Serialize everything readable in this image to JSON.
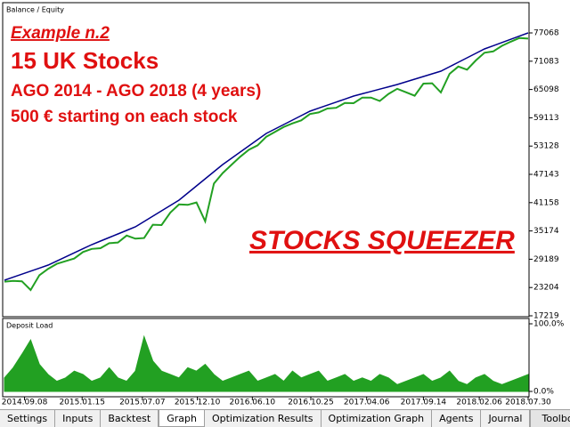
{
  "chart_data": [
    {
      "type": "line",
      "title": "Balance / Equity",
      "annotations": [
        "Example n.2",
        "15 UK Stocks",
        "AGO 2014 - AGO 2018 (4 years)",
        "500 € starting on each stock",
        "STOCKS SQUEEZER"
      ],
      "xlim": [
        0,
        60
      ],
      "ylim": [
        17219,
        83280
      ],
      "yticks": [
        77068,
        71083,
        65098,
        59113,
        53128,
        47143,
        41158,
        35174,
        29189,
        23204,
        17219
      ],
      "series": [
        {
          "color": "#22a022",
          "values": [
            24450,
            24590,
            24530,
            22670,
            25810,
            27150,
            28210,
            28780,
            29340,
            30710,
            31370,
            31520,
            32580,
            32730,
            34190,
            33540,
            33670,
            36490,
            36420,
            39050,
            40780,
            40690,
            41190,
            37200,
            45200,
            47410,
            49130,
            50850,
            52360,
            53280,
            55100,
            56140,
            57180,
            57920,
            58560,
            59900,
            60240,
            61080,
            61220,
            62260,
            62200,
            63390,
            63380,
            62670,
            64160,
            65250,
            64510,
            63780,
            66340,
            66410,
            64470,
            68410,
            69950,
            69300,
            71240,
            72880,
            73160,
            74340,
            75210,
            75990,
            75870
          ]
        },
        {
          "color": "#00008b",
          "values": [
            24750,
            25390,
            26030,
            26670,
            27310,
            27950,
            28810,
            29680,
            30540,
            31410,
            32270,
            33020,
            33780,
            34530,
            35290,
            36040,
            37170,
            38290,
            39420,
            40550,
            41680,
            43190,
            44690,
            46200,
            47700,
            49210,
            50530,
            51850,
            53160,
            54480,
            55800,
            56740,
            57680,
            58620,
            59560,
            60500,
            61140,
            61780,
            62420,
            63060,
            63700,
            64190,
            64680,
            65170,
            65660,
            66150,
            66710,
            67280,
            67840,
            68410,
            68970,
            69910,
            70850,
            71800,
            72740,
            73680,
            74360,
            75040,
            75710,
            76390,
            77070
          ]
        }
      ]
    },
    {
      "type": "area",
      "title": "Deposit Load",
      "color": "#22a022",
      "xlim": [
        0,
        60
      ],
      "ylim": [
        0,
        100
      ],
      "yticks": [
        {
          "value": 100,
          "label": "100.0%"
        },
        {
          "value": 0,
          "label": "0.0%"
        }
      ],
      "xticks": [
        {
          "value": 2.3,
          "label": "2014.09.08"
        },
        {
          "value": 8.9,
          "label": "2015.01.15"
        },
        {
          "value": 15.8,
          "label": "2015.07.07"
        },
        {
          "value": 22.1,
          "label": "2015.12.10"
        },
        {
          "value": 28.4,
          "label": "2016.06.10"
        },
        {
          "value": 35.1,
          "label": "2016.10.25"
        },
        {
          "value": 41.5,
          "label": "2017.04.06"
        },
        {
          "value": 48,
          "label": "2017.09.14"
        },
        {
          "value": 54.4,
          "label": "2018.02.06"
        },
        {
          "value": 60,
          "label": "2018.07.30"
        }
      ],
      "values": [
        20,
        35,
        55,
        76,
        40,
        25,
        15,
        20,
        30,
        25,
        15,
        20,
        35,
        20,
        15,
        30,
        81,
        45,
        30,
        25,
        20,
        35,
        30,
        40,
        25,
        15,
        20,
        25,
        30,
        15,
        20,
        25,
        15,
        30,
        20,
        25,
        30,
        15,
        20,
        25,
        15,
        20,
        15,
        25,
        20,
        10,
        15,
        20,
        25,
        15,
        20,
        30,
        15,
        10,
        20,
        25,
        15,
        10,
        15,
        20,
        25
      ]
    }
  ],
  "tabs": [
    "Settings",
    "Inputs",
    "Backtest",
    "Graph",
    "Optimization Results",
    "Optimization Graph",
    "Agents",
    "Journal"
  ],
  "active_tab": "Graph",
  "toolbox": "Toolbox"
}
